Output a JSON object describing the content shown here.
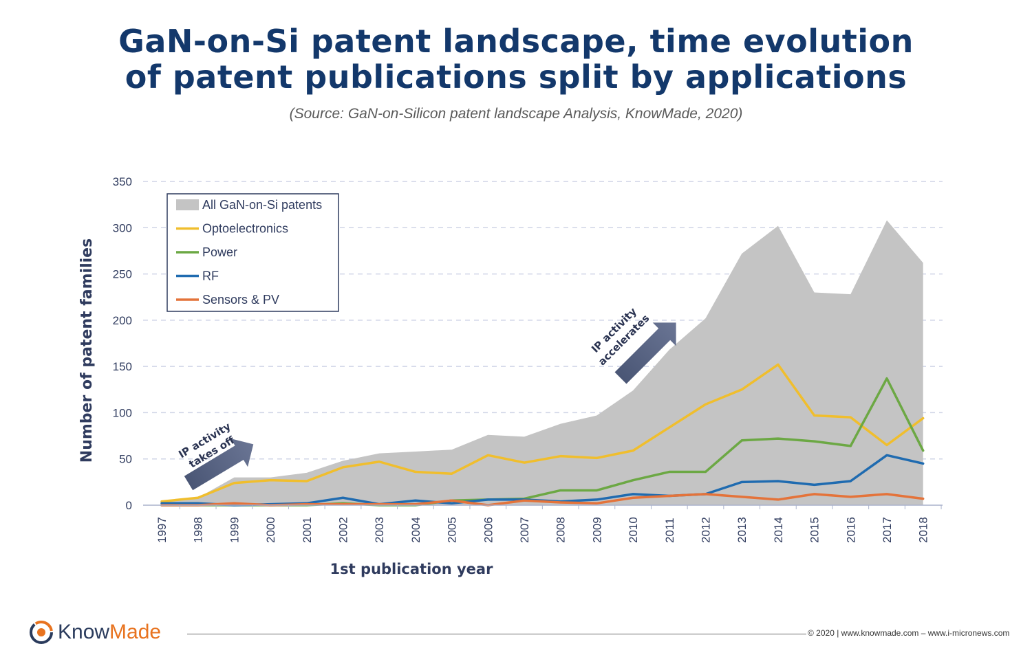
{
  "title_line1": "GaN-on-Si patent landscape, time evolution",
  "title_line2": "of patent publications split by applications",
  "subtitle": "(Source: GaN-on-Silicon patent landscape Analysis, KnowMade, 2020)",
  "annotations": {
    "takes_off_line1": "IP activity",
    "takes_off_line2": "takes off",
    "accelerates_line1": "IP activity",
    "accelerates_line2": "accelerates"
  },
  "footer": {
    "copyright": "© 2020 | www.knowmade.com – www.i-micronews.com",
    "logo_know": "Know",
    "logo_made": "Made"
  },
  "chart_data": {
    "type": "area",
    "title": "",
    "xlabel": "1st publication year",
    "ylabel": "Number of patent families",
    "ylim": [
      0,
      350
    ],
    "yticks": [
      0,
      50,
      100,
      150,
      200,
      250,
      300,
      350
    ],
    "grid": "horizontal dashed",
    "legend_position": "top-left",
    "categories": [
      "1997",
      "1998",
      "1999",
      "2000",
      "2001",
      "2002",
      "2003",
      "2004",
      "2005",
      "2006",
      "2007",
      "2008",
      "2009",
      "2010",
      "2011",
      "2012",
      "2013",
      "2014",
      "2015",
      "2016",
      "2017",
      "2018"
    ],
    "series": [
      {
        "name": "All GaN-on-Si patents",
        "kind": "area",
        "color": "#c4c4c4",
        "values": [
          3,
          8,
          30,
          30,
          35,
          48,
          56,
          58,
          60,
          76,
          74,
          88,
          97,
          124,
          168,
          202,
          272,
          302,
          230,
          228,
          308,
          262
        ]
      },
      {
        "name": "Optoelectronics",
        "kind": "line",
        "color": "#f0be2d",
        "values": [
          4,
          8,
          24,
          27,
          26,
          41,
          47,
          36,
          34,
          54,
          46,
          53,
          51,
          59,
          84,
          109,
          125,
          152,
          97,
          95,
          65,
          94
        ]
      },
      {
        "name": "Power",
        "kind": "line",
        "color": "#6ca844",
        "values": [
          0,
          0,
          0,
          0,
          0,
          2,
          0,
          0,
          5,
          6,
          7,
          16,
          16,
          27,
          36,
          36,
          70,
          72,
          69,
          64,
          137,
          59
        ]
      },
      {
        "name": "RF",
        "kind": "line",
        "color": "#1f6bb0",
        "values": [
          2,
          2,
          0,
          1,
          2,
          8,
          1,
          5,
          2,
          6,
          6,
          4,
          6,
          12,
          10,
          12,
          25,
          26,
          22,
          26,
          54,
          45
        ]
      },
      {
        "name": "Sensors & PV",
        "kind": "line",
        "color": "#e4733a",
        "values": [
          0,
          0,
          2,
          0,
          1,
          1,
          1,
          1,
          5,
          0,
          5,
          3,
          2,
          8,
          10,
          12,
          9,
          6,
          12,
          9,
          12,
          7
        ]
      }
    ]
  }
}
